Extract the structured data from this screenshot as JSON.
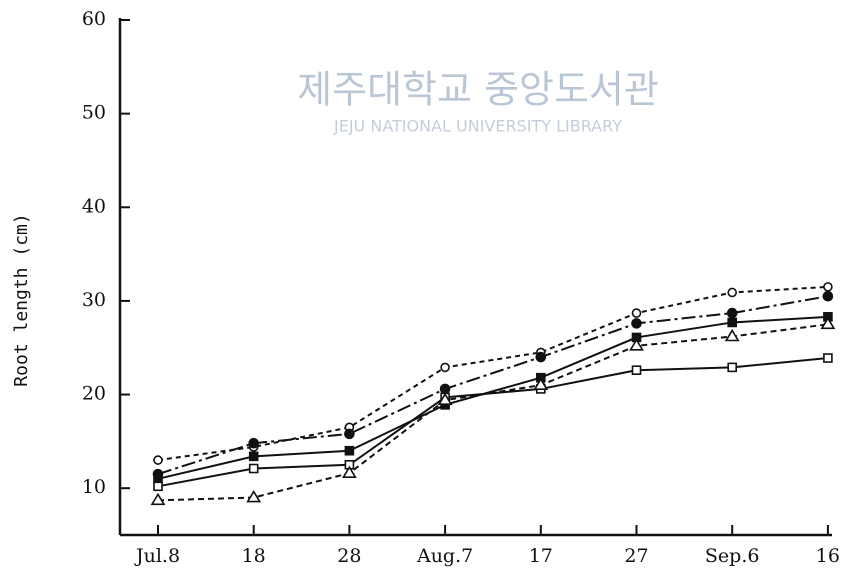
{
  "chart_data": {
    "type": "line",
    "ylabel": "Root length (cm)",
    "watermark": [
      "제주대학교 중앙도서관",
      "JEJU NATIONAL UNIVERSITY LIBRARY"
    ],
    "categories": [
      "Jul.8",
      "18",
      "28",
      "Aug.7",
      "17",
      "27",
      "Sep.6",
      "16"
    ],
    "ylim": [
      5,
      60
    ],
    "yticks": [
      10,
      20,
      30,
      40,
      50,
      60
    ],
    "series": [
      {
        "color": "#111111",
        "marker": "open-circle",
        "dash": "5,4",
        "values": [
          13.0,
          14.4,
          16.5,
          22.9,
          24.5,
          28.7,
          30.9,
          31.5
        ]
      },
      {
        "color": "#111111",
        "marker": "filled-circle",
        "dash": "14,4,3,4",
        "values": [
          11.5,
          14.8,
          15.8,
          20.6,
          24.0,
          27.6,
          28.7,
          30.5
        ]
      },
      {
        "color": "#111111",
        "marker": "filled-square",
        "dash": "",
        "values": [
          11.0,
          13.4,
          14.0,
          18.9,
          21.8,
          26.1,
          27.7,
          28.3
        ]
      },
      {
        "color": "#111111",
        "marker": "open-square",
        "dash": "",
        "values": [
          10.2,
          12.1,
          12.5,
          19.7,
          20.6,
          22.6,
          22.9,
          23.9
        ]
      },
      {
        "color": "#111111",
        "marker": "triangle",
        "dash": "6,4",
        "values": [
          8.7,
          9.0,
          11.6,
          19.4,
          21.0,
          25.2,
          26.2,
          27.5
        ]
      }
    ]
  }
}
